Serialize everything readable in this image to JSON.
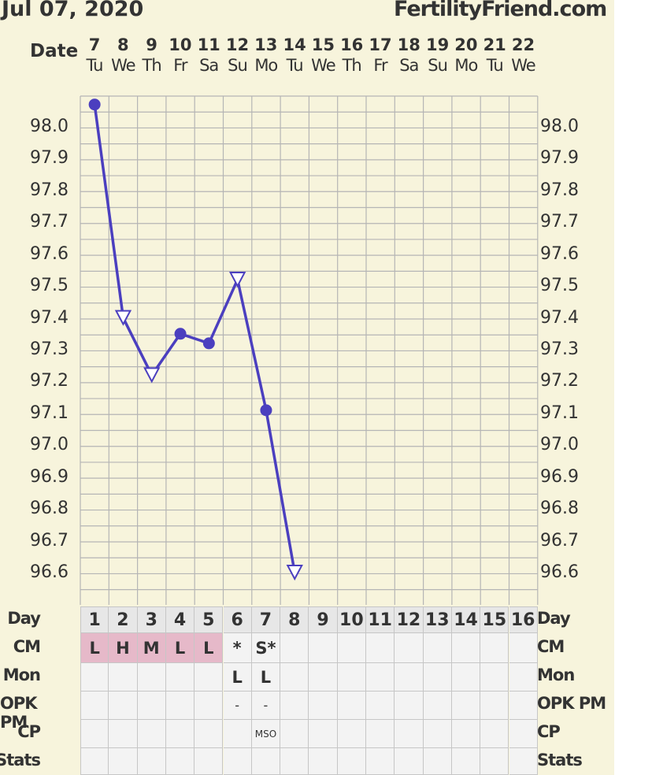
{
  "header": {
    "date": "Jul 07, 2020",
    "site": "FertilityFriend.com"
  },
  "date_row_label": "Date",
  "dates": [
    {
      "day": "7",
      "wd": "Tu"
    },
    {
      "day": "8",
      "wd": "We"
    },
    {
      "day": "9",
      "wd": "Th"
    },
    {
      "day": "10",
      "wd": "Fr"
    },
    {
      "day": "11",
      "wd": "Sa"
    },
    {
      "day": "12",
      "wd": "Su"
    },
    {
      "day": "13",
      "wd": "Mo"
    },
    {
      "day": "14",
      "wd": "Tu"
    },
    {
      "day": "15",
      "wd": "We"
    },
    {
      "day": "16",
      "wd": "Th"
    },
    {
      "day": "17",
      "wd": "Fr"
    },
    {
      "day": "18",
      "wd": "Sa"
    },
    {
      "day": "19",
      "wd": "Su"
    },
    {
      "day": "20",
      "wd": "Mo"
    },
    {
      "day": "21",
      "wd": "Tu"
    },
    {
      "day": "22",
      "wd": "We"
    }
  ],
  "row_labels": {
    "day": "Day",
    "cm": "CM",
    "mon": "Mon",
    "opk": "OPK PM",
    "cp": "CP",
    "stats": "Stats"
  },
  "cycle_days": [
    "1",
    "2",
    "3",
    "4",
    "5",
    "6",
    "7",
    "8",
    "9",
    "10",
    "11",
    "12",
    "13",
    "14",
    "15",
    "16"
  ],
  "cm": [
    "L",
    "H",
    "M",
    "L",
    "L",
    "*",
    "S*",
    "",
    "",
    "",
    "",
    "",
    "",
    "",
    "",
    ""
  ],
  "cm_highlight": [
    true,
    true,
    true,
    true,
    true,
    false,
    false,
    false,
    false,
    false,
    false,
    false,
    false,
    false,
    false,
    false
  ],
  "mon": [
    "",
    "",
    "",
    "",
    "",
    "L",
    "L",
    "",
    "",
    "",
    "",
    "",
    "",
    "",
    "",
    ""
  ],
  "opk_pm": [
    "",
    "",
    "",
    "",
    "",
    "-",
    "-",
    "",
    "",
    "",
    "",
    "",
    "",
    "",
    "",
    ""
  ],
  "cp": [
    "",
    "",
    "",
    "",
    "",
    "",
    "MSO",
    "",
    "",
    "",
    "",
    "",
    "",
    "",
    "",
    ""
  ],
  "stats": [
    "",
    "",
    "",
    "",
    "",
    "",
    "",
    "",
    "",
    "",
    "",
    "",
    "",
    "",
    "",
    ""
  ],
  "colors": {
    "line": "#4b3fbf",
    "background": "#f7f4dc",
    "grid": "#b5b5b5",
    "day_cells": "#e7e7e7",
    "cm_highlight": "#e6b9c9"
  },
  "chart_data": {
    "type": "line",
    "title": "",
    "xlabel": "Date",
    "ylabel": "",
    "x": [
      "7",
      "8",
      "9",
      "10",
      "11",
      "12",
      "13",
      "14"
    ],
    "values": [
      98.07,
      97.4,
      97.22,
      97.35,
      97.32,
      97.52,
      97.11,
      96.6
    ],
    "markers": [
      "circle",
      "triangle-open",
      "triangle-open",
      "circle",
      "circle",
      "triangle-open",
      "circle",
      "triangle-open"
    ],
    "ylim": [
      96.5,
      98.15
    ],
    "yticks": [
      "98.0",
      "97.9",
      "97.8",
      "97.7",
      "97.6",
      "97.5",
      "97.4",
      "97.3",
      "97.2",
      "97.1",
      "97.0",
      "96.9",
      "96.8",
      "96.7",
      "96.6"
    ],
    "grid": true
  }
}
